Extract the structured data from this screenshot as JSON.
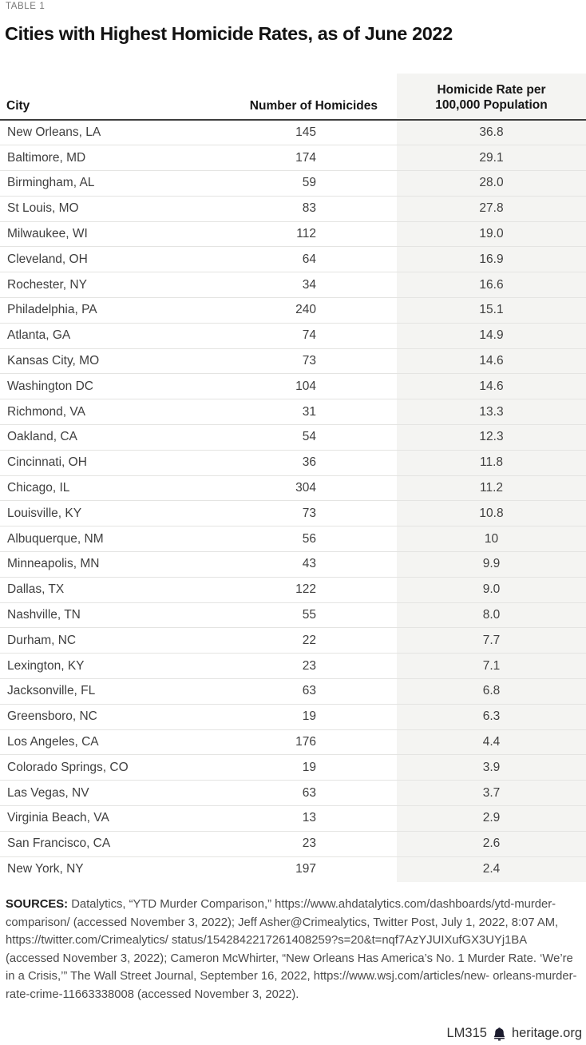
{
  "page": {
    "table_label": "TABLE 1",
    "title": "Cities with Highest Homicide Rates, as of June 2022"
  },
  "table": {
    "header": {
      "city": "City",
      "homicides": "Number of Homicides",
      "rate_line1": "Homicide Rate per",
      "rate_line2": "100,000 Population"
    },
    "rows": [
      {
        "city": "New Orleans, LA",
        "homicides": "145",
        "rate": "36.8"
      },
      {
        "city": "Baltimore, MD",
        "homicides": "174",
        "rate": "29.1"
      },
      {
        "city": "Birmingham, AL",
        "homicides": "59",
        "rate": "28.0"
      },
      {
        "city": "St Louis, MO",
        "homicides": "83",
        "rate": "27.8"
      },
      {
        "city": "Milwaukee, WI",
        "homicides": "112",
        "rate": "19.0"
      },
      {
        "city": "Cleveland, OH",
        "homicides": "64",
        "rate": "16.9"
      },
      {
        "city": "Rochester, NY",
        "homicides": "34",
        "rate": "16.6"
      },
      {
        "city": "Philadelphia, PA",
        "homicides": "240",
        "rate": "15.1"
      },
      {
        "city": "Atlanta, GA",
        "homicides": "74",
        "rate": "14.9"
      },
      {
        "city": "Kansas City, MO",
        "homicides": "73",
        "rate": "14.6"
      },
      {
        "city": "Washington DC",
        "homicides": "104",
        "rate": "14.6"
      },
      {
        "city": "Richmond, VA",
        "homicides": "31",
        "rate": "13.3"
      },
      {
        "city": "Oakland, CA",
        "homicides": "54",
        "rate": "12.3"
      },
      {
        "city": "Cincinnati, OH",
        "homicides": "36",
        "rate": "11.8"
      },
      {
        "city": "Chicago, IL",
        "homicides": "304",
        "rate": "11.2"
      },
      {
        "city": "Louisville, KY",
        "homicides": "73",
        "rate": "10.8"
      },
      {
        "city": "Albuquerque, NM",
        "homicides": "56",
        "rate": "10"
      },
      {
        "city": "Minneapolis, MN",
        "homicides": "43",
        "rate": "9.9"
      },
      {
        "city": "Dallas, TX",
        "homicides": "122",
        "rate": "9.0"
      },
      {
        "city": "Nashville, TN",
        "homicides": "55",
        "rate": "8.0"
      },
      {
        "city": "Durham, NC",
        "homicides": "22",
        "rate": "7.7"
      },
      {
        "city": "Lexington, KY",
        "homicides": "23",
        "rate": "7.1"
      },
      {
        "city": "Jacksonville, FL",
        "homicides": "63",
        "rate": "6.8"
      },
      {
        "city": "Greensboro, NC",
        "homicides": "19",
        "rate": "6.3"
      },
      {
        "city": "Los Angeles, CA",
        "homicides": "176",
        "rate": "4.4"
      },
      {
        "city": "Colorado Springs, CO",
        "homicides": "19",
        "rate": "3.9"
      },
      {
        "city": "Las Vegas, NV",
        "homicides": "63",
        "rate": "3.7"
      },
      {
        "city": "Virginia Beach, VA",
        "homicides": "13",
        "rate": "2.9"
      },
      {
        "city": "San Francisco, CA",
        "homicides": "23",
        "rate": "2.6"
      },
      {
        "city": "New York, NY",
        "homicides": "197",
        "rate": "2.4"
      }
    ]
  },
  "sources": {
    "label": "SOURCES:",
    "text": "Datalytics, “YTD Murder Comparison,” https://www.ahdatalytics.com/dashboards/ytd-murder-comparison/ (accessed November 3, 2022); Jeff Asher@Crimealytics, Twitter Post, July 1, 2022, 8:07 AM, https://twitter.com/Crimealytics/ status/1542842217261408259?s=20&t=nqf7AzYJUIXufGX3UYj1BA (accessed November 3, 2022); Cameron McWhirter, “New Orleans Has America’s No. 1 Murder Rate. ‘We’re in a Crisis,’” The Wall Street Journal, September 16, 2022, https://www.wsj.com/articles/new- orleans-murder-rate-crime-11663338008 (accessed November 3, 2022)."
  },
  "footer": {
    "doc_id": "LM315",
    "site": "heritage.org"
  },
  "colors": {
    "rate_col_bg": "#f4f4f2",
    "row_divider": "#e4e4e2",
    "header_rule": "#3e3e3e",
    "label_gray": "#767676",
    "text": "#3f3f3f",
    "bell": "#1c1c2e"
  }
}
